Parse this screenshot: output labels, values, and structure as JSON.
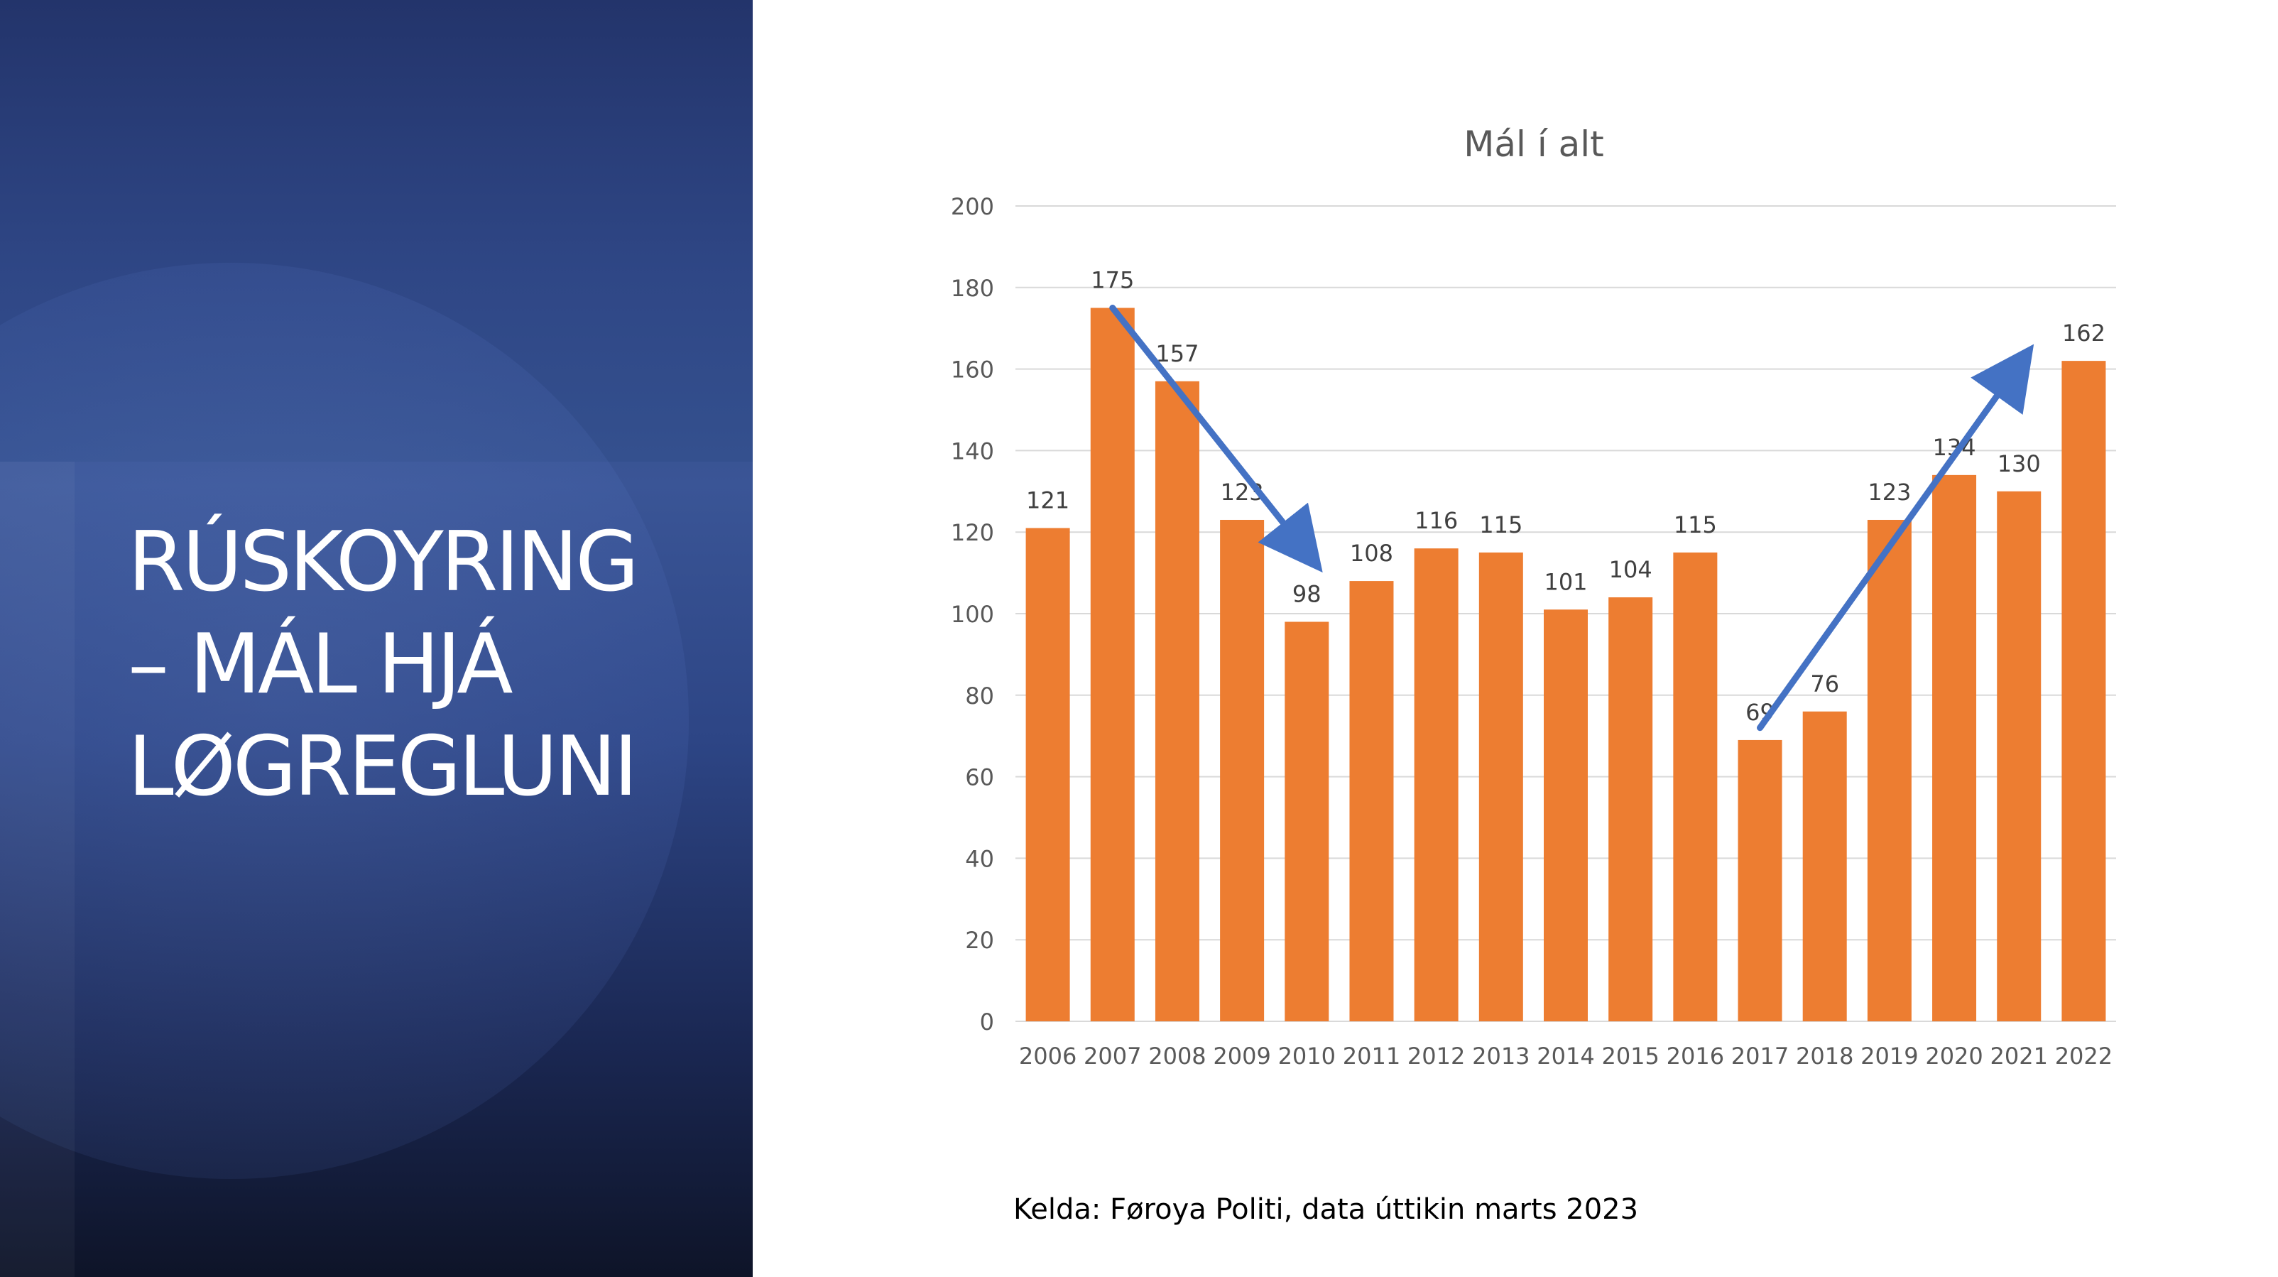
{
  "slide": {
    "title_lines": [
      "RÚSKOYRING",
      "– MÁL HJÁ",
      "LØGREGLUNI"
    ],
    "source": "Kelda: Føroya Politi, data úttikin marts 2023"
  },
  "colors": {
    "bar": "#ed7d31",
    "arrow": "#4472c4",
    "grid": "#d9d9d9",
    "text": "#595959"
  },
  "chart_data": {
    "type": "bar",
    "title": "Mál í alt",
    "categories": [
      "2006",
      "2007",
      "2008",
      "2009",
      "2010",
      "2011",
      "2012",
      "2013",
      "2014",
      "2015",
      "2016",
      "2017",
      "2018",
      "2019",
      "2020",
      "2021",
      "2022"
    ],
    "values": [
      121,
      175,
      157,
      123,
      98,
      108,
      116,
      115,
      101,
      104,
      115,
      69,
      76,
      123,
      134,
      130,
      162
    ],
    "ylim": [
      0,
      200
    ],
    "yticks": [
      0,
      20,
      40,
      60,
      80,
      100,
      120,
      140,
      160,
      180,
      200
    ],
    "grid": true,
    "legend": "none",
    "data_labels": true,
    "annotations": [
      {
        "type": "arrow",
        "from": {
          "x": "2007",
          "y": 175
        },
        "to": {
          "x": "2010",
          "y": 115
        }
      },
      {
        "type": "arrow",
        "from": {
          "x": "2017",
          "y": 72
        },
        "to": {
          "x": "2021",
          "y": 161
        }
      }
    ]
  }
}
